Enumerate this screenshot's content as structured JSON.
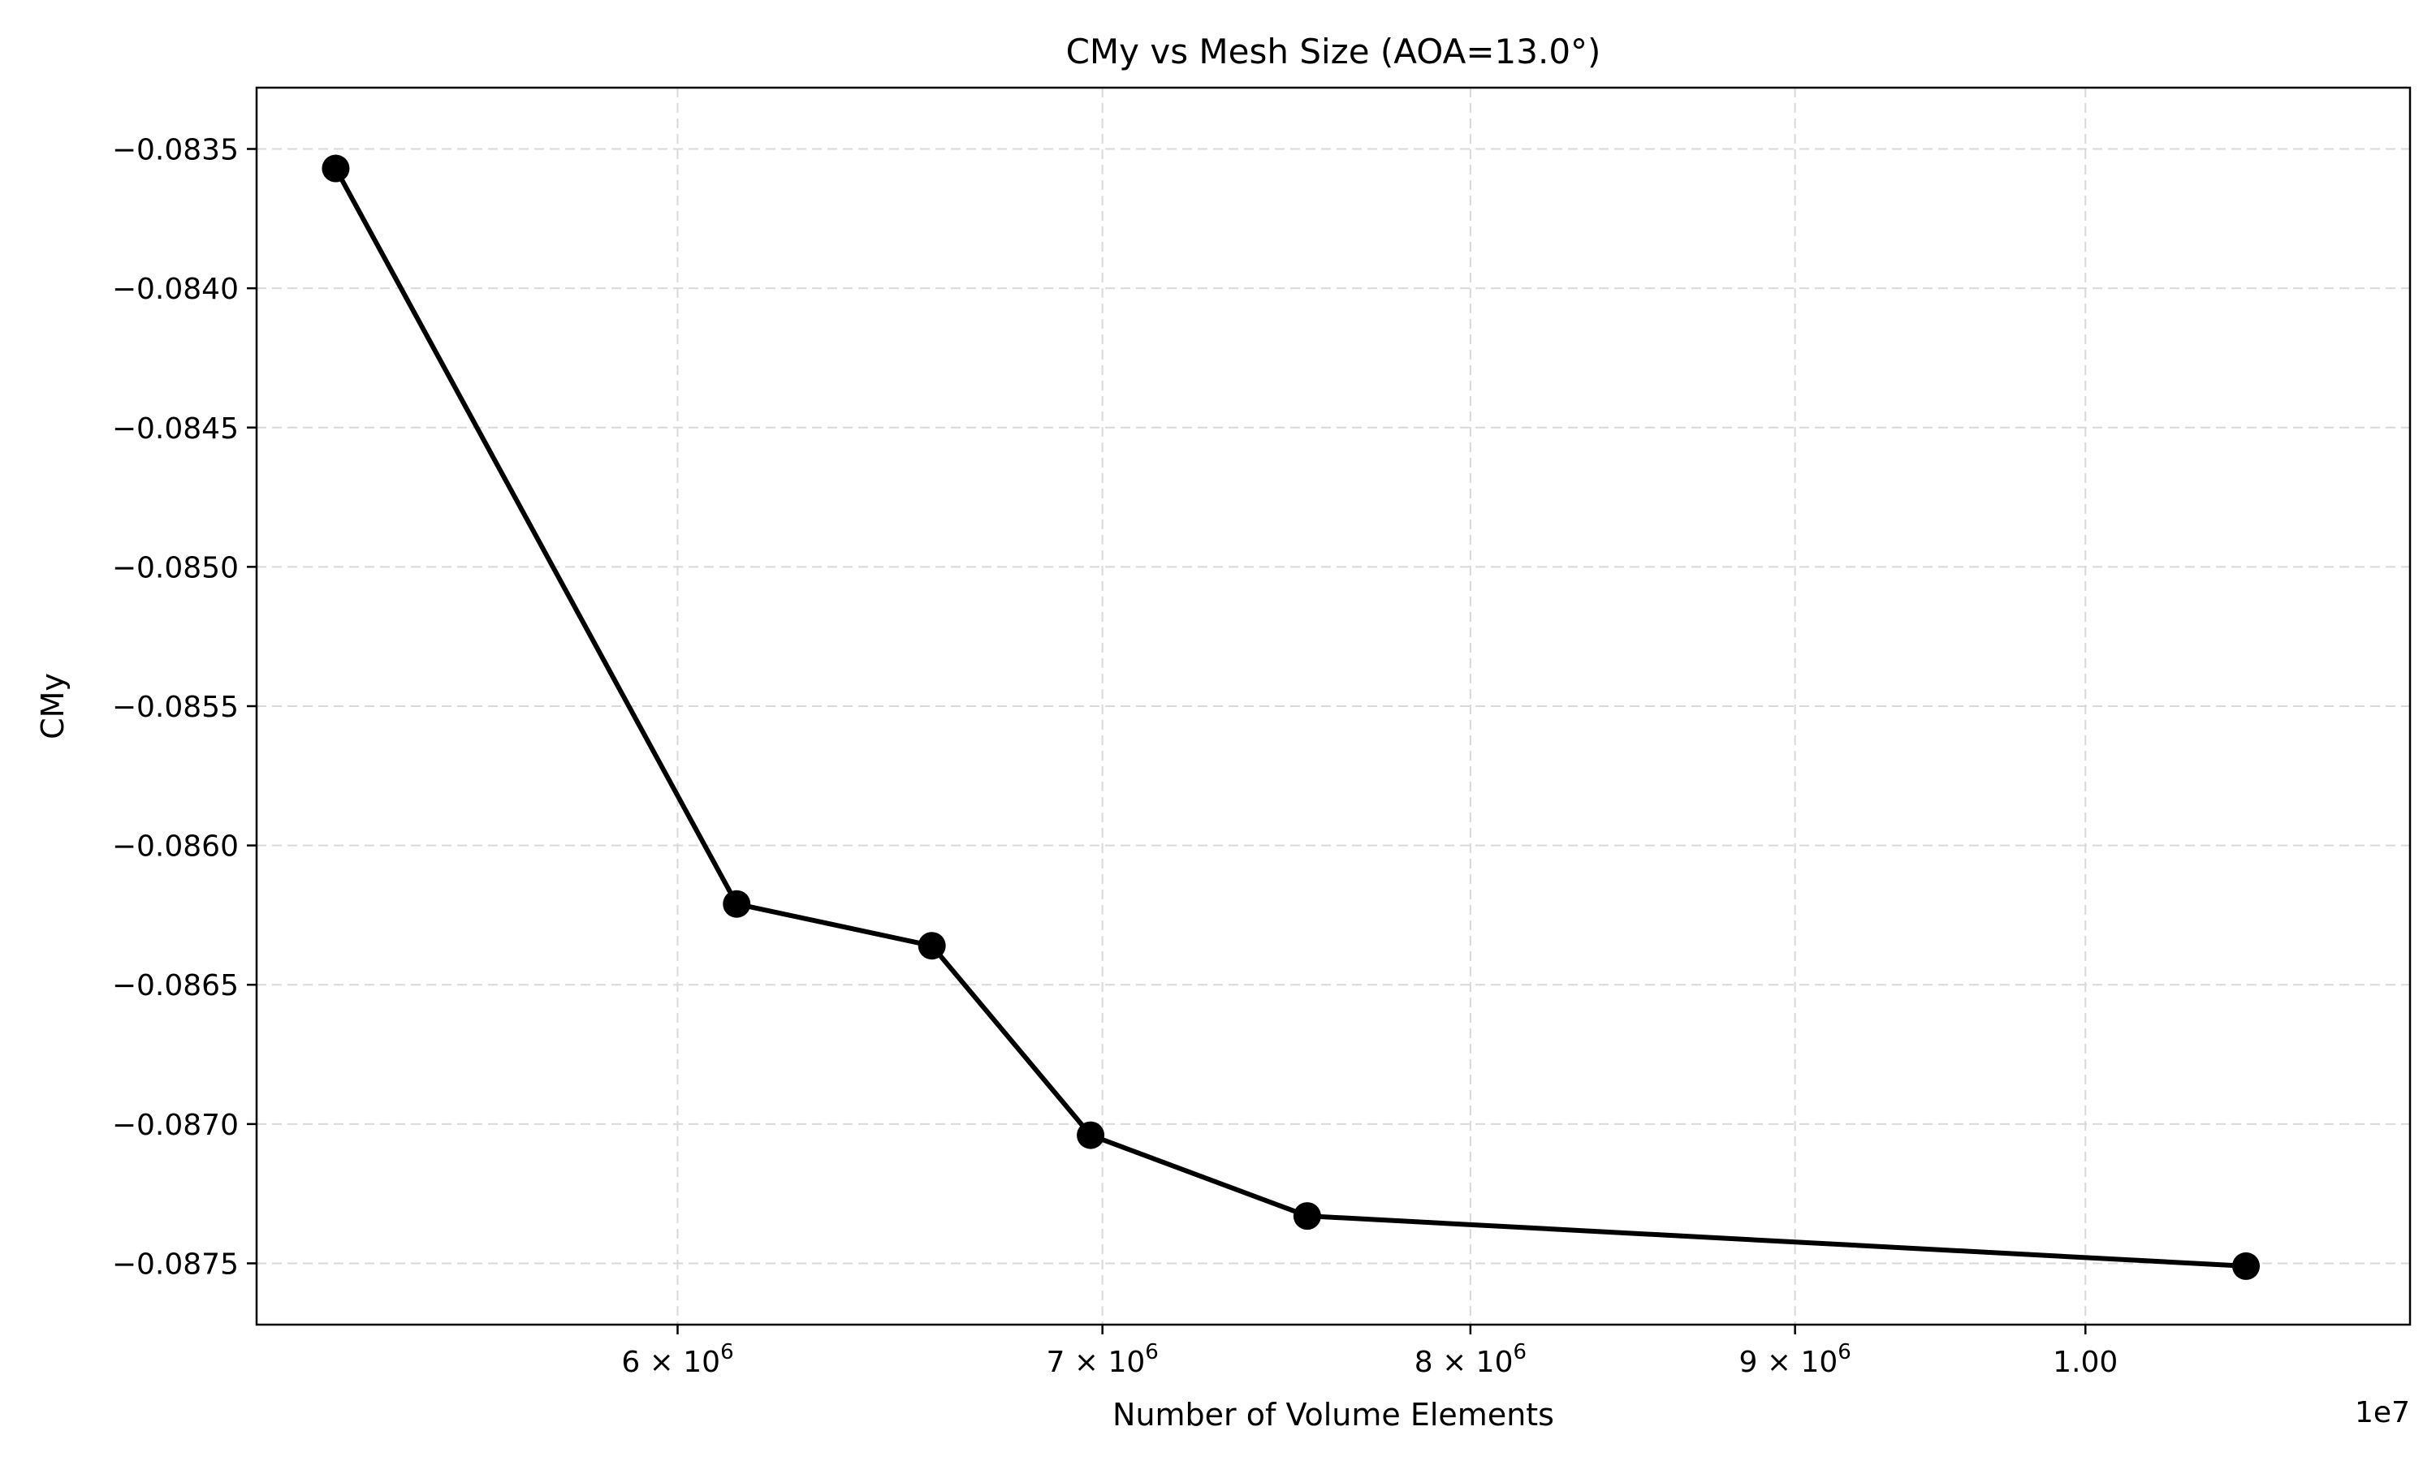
{
  "chart_data": {
    "type": "line",
    "title": "CMy vs Mesh Size (AOA=13.0°)",
    "xlabel": "Number of Volume Elements",
    "ylabel": "CMy",
    "x_scale": "log",
    "x_offset_label": "1e7",
    "xlim": [
      5150000,
      11250000
    ],
    "ylim": [
      -0.08772,
      -0.08328
    ],
    "x_ticks": [
      {
        "value": 6000000,
        "base": "6 × 10",
        "exp": "6"
      },
      {
        "value": 7000000,
        "base": "7 × 10",
        "exp": "6"
      },
      {
        "value": 8000000,
        "base": "8 × 10",
        "exp": "6"
      },
      {
        "value": 9000000,
        "base": "9 × 10",
        "exp": "6"
      },
      {
        "value": 10000000,
        "base": "1.00",
        "exp": ""
      }
    ],
    "y_ticks": [
      {
        "value": -0.0835,
        "label": "−0.0835"
      },
      {
        "value": -0.084,
        "label": "−0.0840"
      },
      {
        "value": -0.0845,
        "label": "−0.0845"
      },
      {
        "value": -0.085,
        "label": "−0.0850"
      },
      {
        "value": -0.0855,
        "label": "−0.0855"
      },
      {
        "value": -0.086,
        "label": "−0.0860"
      },
      {
        "value": -0.0865,
        "label": "−0.0865"
      },
      {
        "value": -0.087,
        "label": "−0.0870"
      },
      {
        "value": -0.0875,
        "label": "−0.0875"
      }
    ],
    "grid": true,
    "series": [
      {
        "color": "#000000",
        "marker": "circle",
        "x": [
          5300000,
          6130000,
          6580000,
          6970000,
          7540000,
          10600000
        ],
        "y": [
          -0.08357,
          -0.08621,
          -0.08636,
          -0.08704,
          -0.08733,
          -0.08751
        ]
      }
    ]
  }
}
